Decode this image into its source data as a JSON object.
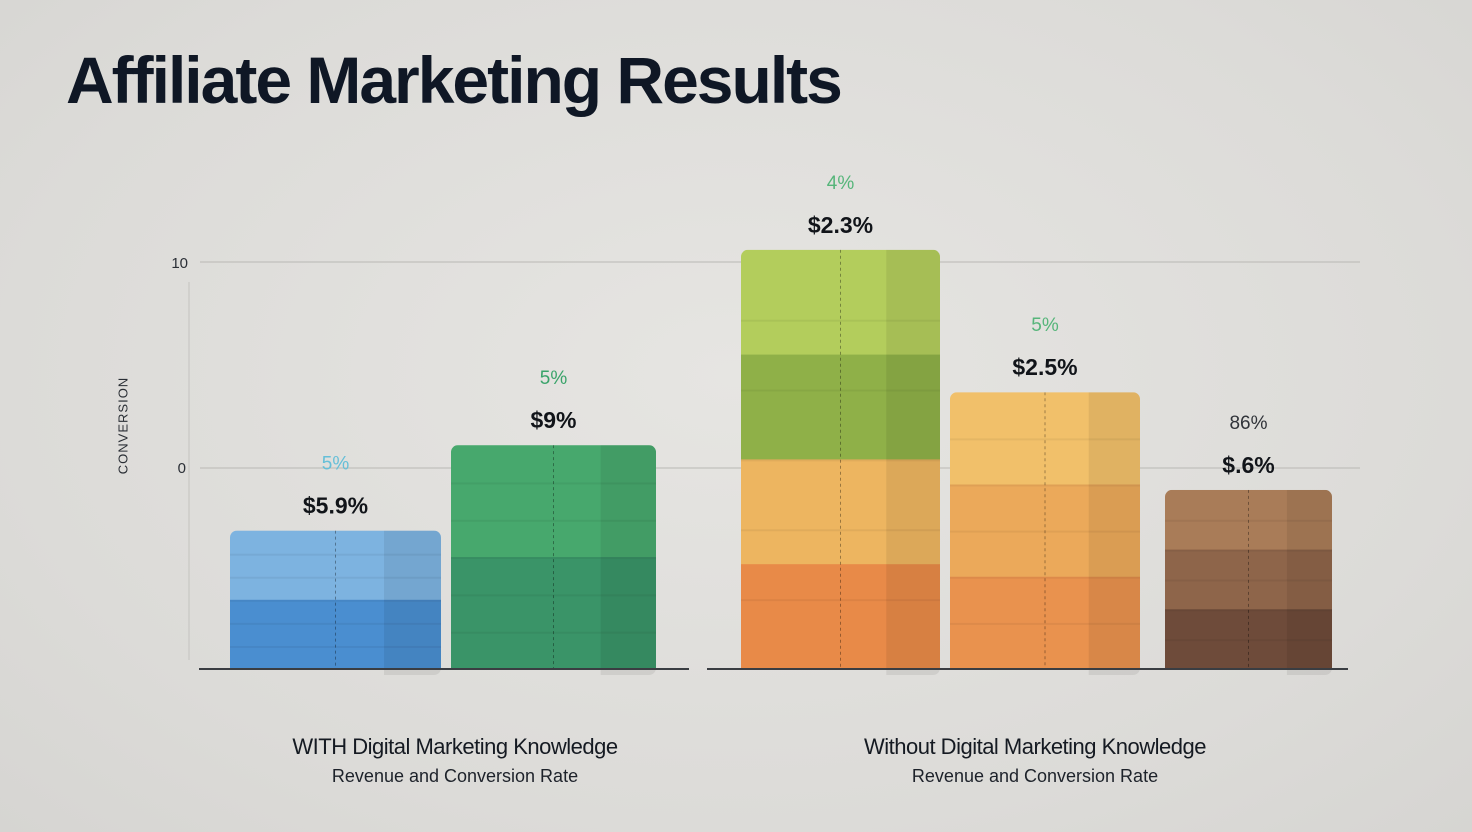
{
  "page": {
    "title": "Affiliate Marketing Results"
  },
  "chart_data": {
    "type": "bar",
    "title": "Affiliate Marketing Results",
    "ylabel": "CONVERSION",
    "yticks": [
      "10",
      "0"
    ],
    "groups": [
      {
        "name": "WITH Digital Marketing Knowledge",
        "subtitle": "Revenue and Conversion Rate",
        "bars": [
          {
            "value_label": "$5.9%",
            "pct_label": "5%",
            "level": 3.4,
            "colors": [
              "#7db3e0",
              "#4a8ed0"
            ],
            "pct_color": "#66bfd8"
          },
          {
            "value_label": "$9%",
            "pct_label": "5%",
            "level": 5.5,
            "colors": [
              "#47a86d",
              "#3a9468"
            ],
            "pct_color": "#3aa36a"
          }
        ]
      },
      {
        "name": "Without Digital Marketing Knowledge",
        "subtitle": "Revenue and Conversion Rate",
        "bars": [
          {
            "value_label": "$2.3%",
            "pct_label": "4%",
            "level": 10.3,
            "colors": [
              "#b3cd5c",
              "#8fb048",
              "#edb560",
              "#e88a48"
            ],
            "pct_color": "#56b57a"
          },
          {
            "value_label": "$2.5%",
            "pct_label": "5%",
            "level": 6.8,
            "colors": [
              "#f1c06a",
              "#eba95a",
              "#e9924e"
            ],
            "pct_color": "#56b57a"
          },
          {
            "value_label": "$.6%",
            "pct_label": "86%",
            "level": 4.4,
            "colors": [
              "#a97c58",
              "#8e654a",
              "#6e4b3a"
            ],
            "pct_color": "#303339"
          }
        ]
      }
    ]
  }
}
